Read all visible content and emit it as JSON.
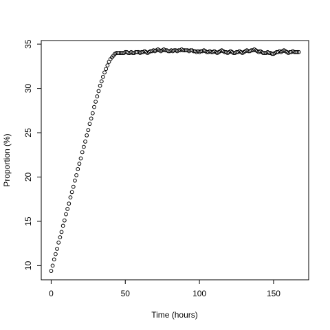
{
  "chart_data": {
    "type": "scatter",
    "xlabel": "Time (hours)",
    "ylabel": "Proportion (%)",
    "x": [
      0,
      1,
      2,
      3,
      4,
      5,
      6,
      7,
      8,
      9,
      10,
      11,
      12,
      13,
      14,
      15,
      16,
      17,
      18,
      19,
      20,
      21,
      22,
      23,
      24,
      25,
      26,
      27,
      28,
      29,
      30,
      31,
      32,
      33,
      34,
      35,
      36,
      37,
      38,
      39,
      40,
      41,
      42,
      43,
      44,
      45,
      46,
      47,
      48,
      49,
      50,
      51,
      52,
      53,
      54,
      55,
      56,
      57,
      58,
      59,
      60,
      61,
      62,
      63,
      64,
      65,
      66,
      67,
      68,
      69,
      70,
      71,
      72,
      73,
      74,
      75,
      76,
      77,
      78,
      79,
      80,
      81,
      82,
      83,
      84,
      85,
      86,
      87,
      88,
      89,
      90,
      91,
      92,
      93,
      94,
      95,
      96,
      97,
      98,
      99,
      100,
      101,
      102,
      103,
      104,
      105,
      106,
      107,
      108,
      109,
      110,
      111,
      112,
      113,
      114,
      115,
      116,
      117,
      118,
      119,
      120,
      121,
      122,
      123,
      124,
      125,
      126,
      127,
      128,
      129,
      130,
      131,
      132,
      133,
      134,
      135,
      136,
      137,
      138,
      139,
      140,
      141,
      142,
      143,
      144,
      145,
      146,
      147,
      148,
      149,
      150,
      151,
      152,
      153,
      154,
      155,
      156,
      157,
      158,
      159,
      160,
      161,
      162,
      163,
      164,
      165,
      166,
      167
    ],
    "values": [
      9.4,
      10.0,
      10.7,
      11.3,
      11.9,
      12.6,
      13.2,
      13.8,
      14.5,
      15.1,
      15.8,
      16.4,
      17.0,
      17.7,
      18.3,
      18.9,
      19.6,
      20.2,
      20.9,
      21.5,
      22.1,
      22.8,
      23.4,
      24.0,
      24.7,
      25.3,
      26.0,
      26.6,
      27.2,
      27.9,
      28.5,
      29.1,
      29.7,
      30.3,
      30.8,
      31.3,
      31.8,
      32.2,
      32.6,
      33.0,
      33.3,
      33.5,
      33.7,
      33.9,
      34.0,
      34.0,
      34.0,
      34.0,
      34.0,
      34.0,
      34.1,
      34.1,
      34.0,
      34.0,
      34.1,
      34.0,
      34.0,
      34.1,
      34.1,
      34.1,
      34.0,
      34.1,
      34.1,
      34.2,
      34.1,
      34.0,
      34.1,
      34.2,
      34.2,
      34.3,
      34.2,
      34.3,
      34.4,
      34.3,
      34.2,
      34.3,
      34.4,
      34.3,
      34.3,
      34.2,
      34.2,
      34.3,
      34.2,
      34.3,
      34.3,
      34.2,
      34.3,
      34.3,
      34.4,
      34.3,
      34.3,
      34.3,
      34.3,
      34.2,
      34.3,
      34.3,
      34.2,
      34.2,
      34.1,
      34.2,
      34.1,
      34.2,
      34.2,
      34.3,
      34.2,
      34.1,
      34.1,
      34.2,
      34.1,
      34.1,
      34.2,
      34.1,
      34.0,
      34.1,
      34.2,
      34.3,
      34.2,
      34.1,
      34.1,
      34.0,
      34.1,
      34.2,
      34.1,
      34.0,
      34.0,
      34.1,
      34.1,
      34.2,
      34.1,
      34.0,
      34.1,
      34.2,
      34.3,
      34.2,
      34.2,
      34.3,
      34.3,
      34.4,
      34.3,
      34.2,
      34.1,
      34.2,
      34.1,
      34.0,
      34.0,
      34.0,
      34.1,
      34.0,
      34.0,
      33.9,
      33.9,
      34.0,
      34.1,
      34.1,
      34.2,
      34.1,
      34.2,
      34.3,
      34.2,
      34.1,
      34.0,
      34.1,
      34.1,
      34.2,
      34.1,
      34.1,
      34.1,
      34.1
    ],
    "color": "#000000",
    "xlim": [
      -6.68,
      173.68
    ],
    "ylim": [
      8.4,
      35.4
    ],
    "xticks": [
      0,
      50,
      100,
      150
    ],
    "yticks": [
      10,
      15,
      20,
      25,
      30,
      35
    ]
  }
}
